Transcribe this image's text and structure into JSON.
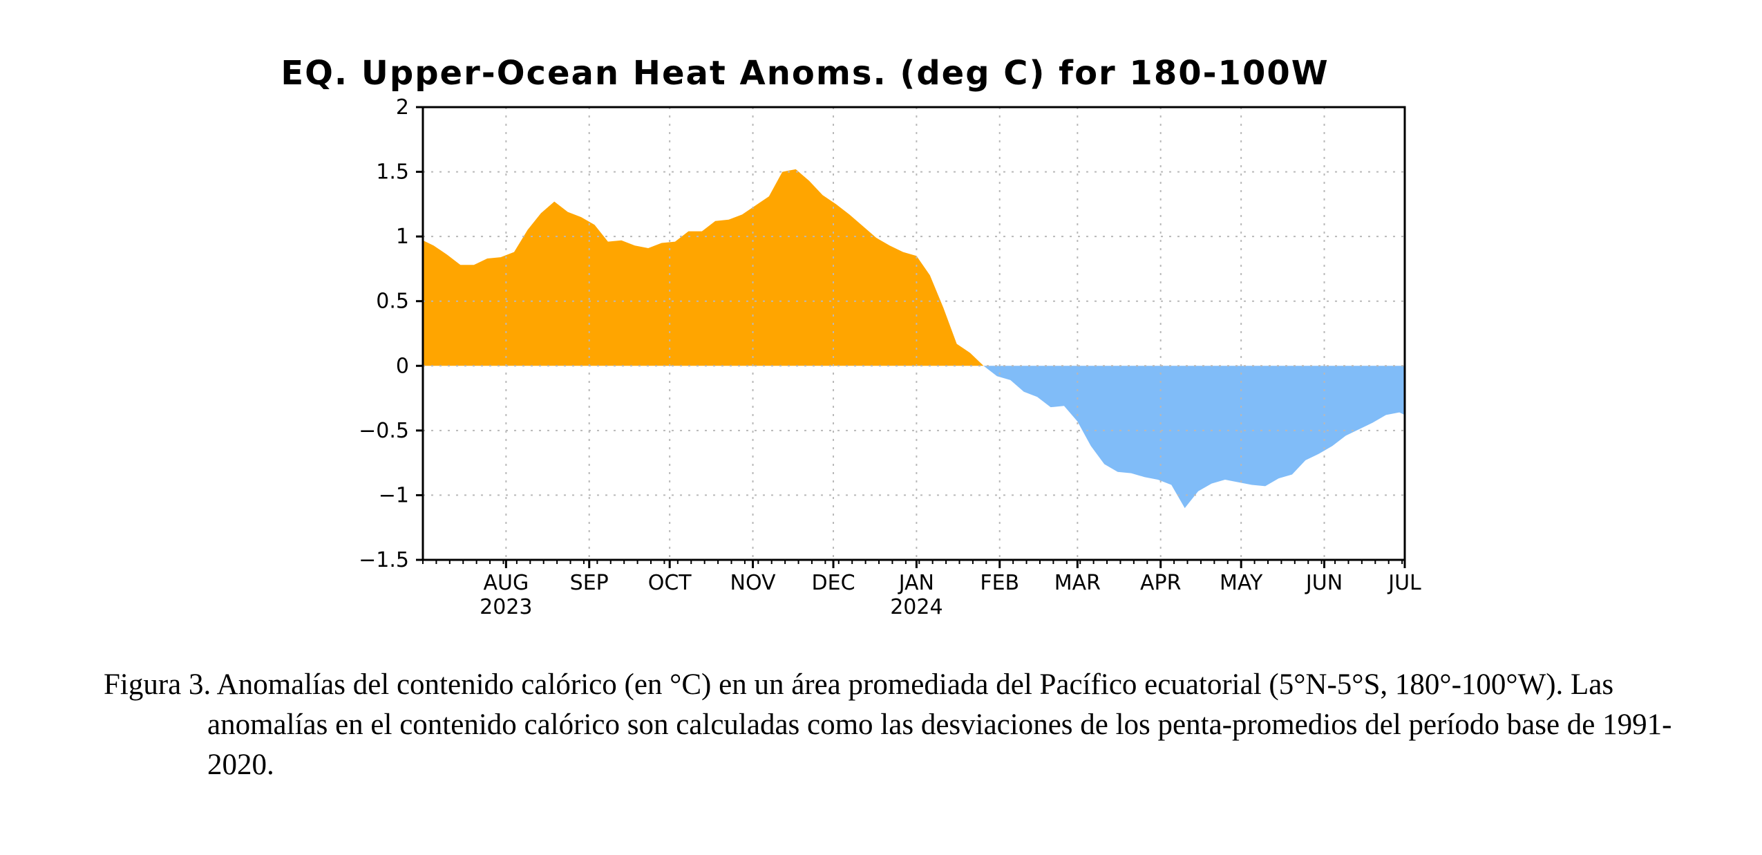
{
  "chart_data": {
    "type": "area",
    "title": "EQ. Upper-Ocean Heat Anoms. (deg C) for 180-100W",
    "xlabel": "",
    "ylabel": "",
    "ylim": [
      -1.5,
      2
    ],
    "yticks": [
      2,
      1.5,
      1,
      0.5,
      0,
      -0.5,
      -1,
      -1.5
    ],
    "ytick_labels": [
      "2",
      "1.5",
      "1",
      "0.5",
      "0",
      "−0.5",
      "−1",
      "−1.5"
    ],
    "xlim": [
      "2023-07-01",
      "2024-07-01"
    ],
    "xticks": [
      {
        "label": "AUG",
        "date": "2023-08-01"
      },
      {
        "label": "SEP",
        "date": "2023-09-01"
      },
      {
        "label": "OCT",
        "date": "2023-10-01"
      },
      {
        "label": "NOV",
        "date": "2023-11-01"
      },
      {
        "label": "DEC",
        "date": "2023-12-01"
      },
      {
        "label": "JAN",
        "date": "2024-01-01"
      },
      {
        "label": "FEB",
        "date": "2024-02-01"
      },
      {
        "label": "MAR",
        "date": "2024-03-01"
      },
      {
        "label": "APR",
        "date": "2024-04-01"
      },
      {
        "label": "MAY",
        "date": "2024-05-01"
      },
      {
        "label": "JUN",
        "date": "2024-06-01"
      },
      {
        "label": "JUL",
        "date": "2024-07-01"
      }
    ],
    "year_labels": [
      {
        "label": "2023",
        "date": "2023-08-01"
      },
      {
        "label": "2024",
        "date": "2024-01-01"
      }
    ],
    "grid": true,
    "positive_color": "#ffa500",
    "negative_color": "#80bcf8",
    "series": [
      {
        "x": [
          "2023-07-01",
          "2023-07-05",
          "2023-07-10",
          "2023-07-15",
          "2023-07-20",
          "2023-07-25",
          "2023-07-30",
          "2023-08-04",
          "2023-08-09",
          "2023-08-14",
          "2023-08-19",
          "2023-08-24",
          "2023-08-29",
          "2023-09-03",
          "2023-09-08",
          "2023-09-13",
          "2023-09-18",
          "2023-09-23",
          "2023-09-28",
          "2023-10-03",
          "2023-10-08",
          "2023-10-13",
          "2023-10-18",
          "2023-10-23",
          "2023-10-28",
          "2023-11-02",
          "2023-11-07",
          "2023-11-12",
          "2023-11-17",
          "2023-11-22",
          "2023-11-27",
          "2023-12-02",
          "2023-12-07",
          "2023-12-12",
          "2023-12-17",
          "2023-12-22",
          "2023-12-27",
          "2024-01-01",
          "2024-01-06",
          "2024-01-11",
          "2024-01-16",
          "2024-01-21",
          "2024-01-26",
          "2024-01-31",
          "2024-02-05",
          "2024-02-10",
          "2024-02-15",
          "2024-02-20",
          "2024-02-25",
          "2024-03-01",
          "2024-03-06",
          "2024-03-11",
          "2024-03-16",
          "2024-03-21",
          "2024-03-26",
          "2024-03-31",
          "2024-04-05",
          "2024-04-10",
          "2024-04-15",
          "2024-04-20",
          "2024-04-25",
          "2024-04-30",
          "2024-05-05",
          "2024-05-10",
          "2024-05-15",
          "2024-05-20",
          "2024-05-25",
          "2024-05-30",
          "2024-06-04",
          "2024-06-09",
          "2024-06-14",
          "2024-06-19",
          "2024-06-24",
          "2024-06-29",
          "2024-07-01"
        ],
        "values": [
          0.97,
          0.93,
          0.86,
          0.78,
          0.78,
          0.83,
          0.84,
          0.88,
          1.05,
          1.18,
          1.27,
          1.19,
          1.15,
          1.09,
          0.96,
          0.97,
          0.93,
          0.91,
          0.95,
          0.96,
          1.04,
          1.04,
          1.12,
          1.13,
          1.17,
          1.24,
          1.31,
          1.5,
          1.52,
          1.43,
          1.32,
          1.25,
          1.17,
          1.08,
          0.99,
          0.93,
          0.88,
          0.85,
          0.7,
          0.45,
          0.17,
          0.1,
          0.0,
          -0.08,
          -0.11,
          -0.2,
          -0.24,
          -0.32,
          -0.31,
          -0.43,
          -0.62,
          -0.76,
          -0.82,
          -0.83,
          -0.86,
          -0.88,
          -0.92,
          -1.1,
          -0.97,
          -0.91,
          -0.88,
          -0.9,
          -0.92,
          -0.93,
          -0.87,
          -0.84,
          -0.73,
          -0.68,
          -0.62,
          -0.54,
          -0.49,
          -0.44,
          -0.38,
          -0.36,
          -0.38
        ]
      }
    ]
  },
  "caption": {
    "text": "Figura 3. Anomalías del contenido calórico (en °C) en un área promediada del Pacífico ecuatorial (5°N-5°S, 180°-100°W). Las anomalías en el contenido calórico son calculadas como las desviaciones de los penta-promedios del período base de 1991-2020."
  }
}
